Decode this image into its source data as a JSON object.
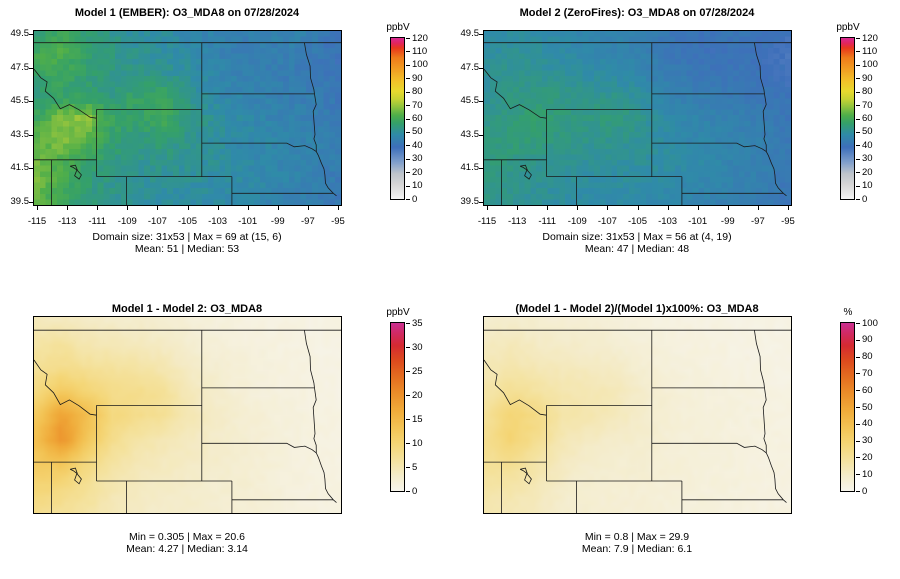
{
  "figure_background": "#ffffff",
  "text_color": "#000000",
  "axes": {
    "x_ticks": [
      "-115",
      "-113",
      "-111",
      "-109",
      "-107",
      "-105",
      "-103",
      "-101",
      "-99",
      "-97",
      "-95"
    ],
    "x_tick_values": [
      -115,
      -113,
      -111,
      -109,
      -107,
      -105,
      -103,
      -101,
      -99,
      -97,
      -95
    ],
    "y_ticks": [
      "39.5",
      "41.5",
      "43.5",
      "45.5",
      "47.5",
      "49.5"
    ],
    "y_tick_values": [
      39.5,
      41.5,
      43.5,
      45.5,
      47.5,
      49.5
    ]
  },
  "palettes": {
    "spectral": [
      [
        0.0,
        "#f4f4f4"
      ],
      [
        0.085,
        "#d7d7d7"
      ],
      [
        0.155,
        "#bfc5cb"
      ],
      [
        0.23,
        "#7e9ecb"
      ],
      [
        0.32,
        "#3e6fba"
      ],
      [
        0.4,
        "#2f8ba8"
      ],
      [
        0.47,
        "#34a06a"
      ],
      [
        0.52,
        "#4fae4a"
      ],
      [
        0.57,
        "#8cc23f"
      ],
      [
        0.62,
        "#c6d334"
      ],
      [
        0.67,
        "#e8da2e"
      ],
      [
        0.73,
        "#f2c42a"
      ],
      [
        0.8,
        "#f1a224"
      ],
      [
        0.88,
        "#ee7b1b"
      ],
      [
        0.94,
        "#e8381d"
      ],
      [
        0.97,
        "#e22560"
      ],
      [
        1.0,
        "#da2b90"
      ]
    ],
    "heat": [
      [
        0.0,
        "#f7f5ec"
      ],
      [
        0.09,
        "#f4ecca"
      ],
      [
        0.18,
        "#f4e3a0"
      ],
      [
        0.28,
        "#f4d676"
      ],
      [
        0.38,
        "#f3c354"
      ],
      [
        0.48,
        "#f0ab3a"
      ],
      [
        0.58,
        "#eb8e2a"
      ],
      [
        0.68,
        "#e46d20"
      ],
      [
        0.78,
        "#dc4a1e"
      ],
      [
        0.87,
        "#d42a33"
      ],
      [
        0.94,
        "#d02a64"
      ],
      [
        1.0,
        "#cb3090"
      ]
    ]
  },
  "geo": {
    "lon_range": [
      -115.2,
      -94.8
    ],
    "lat_range": [
      39.3,
      49.7
    ],
    "borders": [
      [
        [
          -115.2,
          49
        ],
        [
          -94.8,
          49
        ]
      ],
      [
        [
          -97.23,
          49
        ],
        [
          -97.1,
          48.3
        ],
        [
          -96.85,
          47.6
        ],
        [
          -96.83,
          46.9
        ],
        [
          -96.6,
          46.2
        ],
        [
          -96.56,
          45.93
        ],
        [
          -96.45,
          45.3
        ],
        [
          -96.65,
          44.9
        ],
        [
          -96.53,
          43.5
        ],
        [
          -96.6,
          43.25
        ],
        [
          -96.45,
          42.9
        ],
        [
          -96.44,
          42.49
        ],
        [
          -96.3,
          42.25
        ],
        [
          -96.1,
          41.8
        ],
        [
          -95.93,
          41.45
        ],
        [
          -95.87,
          41.1
        ],
        [
          -95.83,
          40.6
        ],
        [
          -95.65,
          40.32
        ],
        [
          -95.31,
          40.0
        ],
        [
          -95.1,
          39.85
        ]
      ],
      [
        [
          -115.2,
          47.42
        ],
        [
          -114.75,
          46.9
        ],
        [
          -114.33,
          46.66
        ],
        [
          -114.45,
          46.1
        ],
        [
          -113.9,
          45.68
        ],
        [
          -113.45,
          45.05
        ],
        [
          -112.85,
          45.3
        ],
        [
          -112.2,
          44.99
        ],
        [
          -111.47,
          44.54
        ],
        [
          -111.05,
          44.49
        ]
      ],
      [
        [
          -111.05,
          44.49
        ],
        [
          -111.05,
          45.0
        ],
        [
          -104.05,
          45.0
        ]
      ],
      [
        [
          -111.05,
          44.49
        ],
        [
          -111.05,
          41.0
        ]
      ],
      [
        [
          -115.2,
          42.0
        ],
        [
          -111.05,
          42.0
        ]
      ],
      [
        [
          -114.04,
          42.0
        ],
        [
          -114.04,
          39.3
        ]
      ],
      [
        [
          -111.05,
          41.0
        ],
        [
          -102.05,
          41.0
        ]
      ],
      [
        [
          -109.05,
          41.0
        ],
        [
          -109.05,
          39.3
        ]
      ],
      [
        [
          -104.05,
          49.0
        ],
        [
          -104.05,
          41.0
        ]
      ],
      [
        [
          -104.05,
          45.94
        ],
        [
          -96.56,
          45.94
        ]
      ],
      [
        [
          -104.05,
          43.0
        ],
        [
          -98.4,
          43.0
        ],
        [
          -97.9,
          42.78
        ],
        [
          -97.2,
          42.85
        ],
        [
          -96.72,
          42.66
        ],
        [
          -96.44,
          42.49
        ]
      ],
      [
        [
          -102.05,
          41.0
        ],
        [
          -102.05,
          39.3
        ]
      ],
      [
        [
          -102.05,
          40.0
        ],
        [
          -95.31,
          40.0
        ]
      ],
      [
        [
          -112.8,
          41.62
        ],
        [
          -112.45,
          41.68
        ],
        [
          -112.3,
          41.35
        ],
        [
          -112.05,
          41.1
        ],
        [
          -112.2,
          40.85
        ],
        [
          -112.5,
          41.05
        ],
        [
          -112.35,
          41.4
        ],
        [
          -112.6,
          41.55
        ],
        [
          -112.8,
          41.62
        ]
      ]
    ]
  },
  "chart_data": [
    {
      "type": "heatmap",
      "panel": "top-left",
      "title": "Model 1 (EMBER): O3_MDA8 on 07/28/2024",
      "variable": "O3_MDA8",
      "date": "07/28/2024",
      "colorbar_title": "ppbV",
      "colorbar_ticks": [
        0,
        10,
        20,
        30,
        40,
        50,
        60,
        70,
        80,
        90,
        100,
        110,
        120
      ],
      "scale_range": [
        0,
        120
      ],
      "xlim": [
        -115,
        -95
      ],
      "ylim": [
        39.5,
        49.5
      ],
      "caption1": "Domain size: 31x53 | Max = 69 at (15, 6)",
      "caption2": "Mean: 51 | Median: 53",
      "stats": {
        "domain_size": "31x53",
        "max": 69,
        "max_at": "(15, 6)",
        "mean": 51,
        "median": 53
      },
      "show_axes": true,
      "palette": "spectral",
      "noise_amp": 2.2,
      "grid_lat": [
        49.5,
        48.25,
        47.0,
        45.75,
        44.5,
        43.25,
        42.0,
        40.75,
        39.5
      ],
      "grid_lon": [
        -115,
        -113.33,
        -111.67,
        -110,
        -108.33,
        -106.67,
        -105,
        -103.33,
        -101.67,
        -100,
        -98.33,
        -96.67,
        -95
      ],
      "grid": [
        [
          56,
          59,
          55,
          52,
          50,
          49,
          47,
          45,
          44,
          44,
          46,
          43,
          41
        ],
        [
          60,
          62,
          56,
          53,
          51,
          50,
          48,
          45,
          44,
          43,
          44,
          42,
          40
        ],
        [
          57,
          58,
          55,
          53,
          52,
          52,
          50,
          47,
          45,
          44,
          43,
          42,
          40
        ],
        [
          53,
          57,
          56,
          54,
          57,
          59,
          52,
          48,
          46,
          45,
          44,
          43,
          41
        ],
        [
          59,
          67,
          69,
          58,
          56,
          60,
          54,
          50,
          48,
          46,
          45,
          44,
          42
        ],
        [
          63,
          68,
          63,
          56,
          54,
          55,
          52,
          50,
          48,
          47,
          46,
          45,
          43
        ],
        [
          65,
          62,
          57,
          54,
          52,
          52,
          51,
          50,
          48,
          47,
          46,
          45,
          43
        ],
        [
          67,
          60,
          55,
          52,
          51,
          50,
          50,
          49,
          48,
          47,
          46,
          45,
          42
        ],
        [
          64,
          58,
          54,
          52,
          50,
          49,
          49,
          48,
          47,
          46,
          45,
          44,
          41
        ]
      ]
    },
    {
      "type": "heatmap",
      "panel": "top-right",
      "title": "Model 2 (ZeroFires): O3_MDA8 on 07/28/2024",
      "variable": "O3_MDA8",
      "date": "07/28/2024",
      "colorbar_title": "ppbV",
      "colorbar_ticks": [
        0,
        10,
        20,
        30,
        40,
        50,
        60,
        70,
        80,
        90,
        100,
        110,
        120
      ],
      "scale_range": [
        0,
        120
      ],
      "xlim": [
        -115,
        -95
      ],
      "ylim": [
        39.5,
        49.5
      ],
      "caption1": "Domain size: 31x53 | Max = 56 at (4, 19)",
      "caption2": "Mean: 47 | Median: 48",
      "stats": {
        "domain_size": "31x53",
        "max": 56,
        "max_at": "(4, 19)",
        "mean": 47,
        "median": 48
      },
      "show_axes": true,
      "palette": "spectral",
      "noise_amp": 1.6,
      "grid_lat": [
        49.5,
        48.25,
        47.0,
        45.75,
        44.5,
        43.25,
        42.0,
        40.75,
        39.5
      ],
      "grid_lon": [
        -115,
        -113.33,
        -111.67,
        -110,
        -108.33,
        -106.67,
        -105,
        -103.33,
        -101.67,
        -100,
        -98.33,
        -96.67,
        -95
      ],
      "grid": [
        [
          47,
          49,
          48,
          47,
          46,
          45,
          44,
          42,
          40,
          40,
          41,
          40,
          38
        ],
        [
          49,
          51,
          50,
          48,
          47,
          46,
          45,
          42,
          40,
          39,
          40,
          39,
          37
        ],
        [
          50,
          52,
          51,
          50,
          49,
          48,
          47,
          44,
          42,
          41,
          41,
          40,
          38
        ],
        [
          50,
          53,
          54,
          53,
          52,
          52,
          50,
          46,
          44,
          43,
          42,
          41,
          40
        ],
        [
          52,
          54,
          56,
          54,
          53,
          54,
          52,
          48,
          46,
          45,
          44,
          43,
          41
        ],
        [
          53,
          55,
          54,
          53,
          52,
          52,
          51,
          49,
          47,
          46,
          45,
          44,
          42
        ],
        [
          54,
          53,
          52,
          51,
          50,
          50,
          50,
          49,
          48,
          47,
          45,
          44,
          42
        ],
        [
          53,
          52,
          51,
          50,
          49,
          49,
          49,
          48,
          47,
          46,
          45,
          44,
          41
        ],
        [
          52,
          51,
          50,
          49,
          48,
          48,
          48,
          47,
          46,
          45,
          44,
          43,
          40
        ]
      ]
    },
    {
      "type": "heatmap",
      "panel": "bottom-left",
      "title": "Model 1 - Model 2: O3_MDA8",
      "variable": "O3_MDA8",
      "colorbar_title": "ppbV",
      "colorbar_ticks": [
        0,
        5,
        10,
        15,
        20,
        25,
        30,
        35
      ],
      "scale_range": [
        0,
        35
      ],
      "xlim": [
        -115,
        -95
      ],
      "ylim": [
        39.5,
        49.5
      ],
      "caption1": "Min = 0.305 | Max = 20.6",
      "caption2": "Mean: 4.27 | Median: 3.14",
      "stats": {
        "min": 0.305,
        "max": 20.6,
        "mean": 4.27,
        "median": 3.14
      },
      "show_axes": false,
      "palette": "heat",
      "noise_amp": 0.35,
      "grid_lat": [
        49.5,
        48.25,
        47.0,
        45.75,
        44.5,
        43.25,
        42.0,
        40.75,
        39.5
      ],
      "grid_lon": [
        -115,
        -113.33,
        -111.67,
        -110,
        -108.33,
        -106.67,
        -105,
        -103.33,
        -101.67,
        -100,
        -98.33,
        -96.67,
        -95
      ],
      "grid": [
        [
          4.0,
          4.0,
          3.5,
          3.0,
          2.8,
          2.5,
          2.0,
          1.5,
          1.2,
          1.0,
          1.0,
          0.8,
          0.8
        ],
        [
          6.0,
          6.5,
          5.0,
          4.5,
          4.0,
          3.5,
          2.5,
          2.0,
          1.5,
          1.2,
          1.0,
          0.8,
          0.8
        ],
        [
          7.0,
          8.0,
          7.0,
          6.5,
          6.0,
          5.0,
          3.5,
          2.5,
          2.0,
          1.5,
          1.2,
          1.0,
          0.8
        ],
        [
          9.0,
          12.0,
          10.0,
          8.0,
          8.0,
          7.0,
          4.5,
          3.0,
          2.0,
          1.5,
          1.2,
          1.0,
          0.8
        ],
        [
          12.0,
          18.0,
          14.0,
          9.0,
          8.0,
          7.0,
          5.0,
          3.5,
          2.5,
          2.0,
          1.5,
          1.2,
          1.0
        ],
        [
          14.0,
          20.0,
          13.0,
          8.0,
          6.0,
          5.0,
          4.0,
          3.0,
          2.5,
          2.0,
          1.5,
          1.2,
          1.0
        ],
        [
          12.0,
          13.0,
          9.0,
          6.0,
          4.5,
          4.0,
          3.5,
          3.0,
          2.5,
          2.0,
          1.5,
          1.2,
          1.0
        ],
        [
          10.0,
          9.0,
          7.0,
          5.0,
          4.0,
          3.5,
          3.0,
          2.5,
          2.5,
          2.0,
          1.5,
          1.2,
          1.0
        ],
        [
          8.0,
          7.0,
          6.0,
          4.5,
          3.5,
          3.0,
          3.0,
          2.5,
          2.0,
          2.0,
          1.5,
          1.2,
          1.0
        ]
      ]
    },
    {
      "type": "heatmap",
      "panel": "bottom-right",
      "title": "(Model 1 - Model 2)/(Model 1)x100%: O3_MDA8",
      "variable": "O3_MDA8",
      "colorbar_title": "%",
      "colorbar_ticks": [
        0,
        10,
        20,
        30,
        40,
        50,
        60,
        70,
        80,
        90,
        100
      ],
      "scale_range": [
        0,
        100
      ],
      "xlim": [
        -115,
        -95
      ],
      "ylim": [
        39.5,
        49.5
      ],
      "caption1": "Min = 0.8 | Max = 29.9",
      "caption2": "Mean: 7.9 | Median: 6.1",
      "stats": {
        "min": 0.8,
        "max": 29.9,
        "mean": 7.9,
        "median": 6.1
      },
      "show_axes": false,
      "palette": "heat",
      "noise_amp": 1.0,
      "grid_lat": [
        49.5,
        48.25,
        47.0,
        45.75,
        44.5,
        43.25,
        42.0,
        40.75,
        39.5
      ],
      "grid_lon": [
        -115,
        -113.33,
        -111.67,
        -110,
        -108.33,
        -106.67,
        -105,
        -103.33,
        -101.67,
        -100,
        -98.33,
        -96.67,
        -95
      ],
      "grid": [
        [
          8,
          8,
          7,
          6,
          6,
          5,
          4,
          3,
          3,
          2.5,
          2.5,
          2,
          2
        ],
        [
          11,
          12,
          10,
          9,
          8,
          7,
          5,
          4,
          3.5,
          3,
          2.5,
          2,
          2
        ],
        [
          13,
          15,
          13,
          12,
          11,
          10,
          7,
          5,
          4,
          3.5,
          3,
          2.5,
          2
        ],
        [
          16,
          21,
          18,
          15,
          14,
          13,
          9,
          6,
          4.5,
          4,
          3.5,
          3,
          2.5
        ],
        [
          20,
          28,
          24,
          16,
          15,
          13,
          9,
          7,
          5,
          4.5,
          4,
          3.5,
          3
        ],
        [
          22,
          29,
          22,
          14,
          11,
          9,
          8,
          6,
          5,
          4.5,
          4,
          3.5,
          3
        ],
        [
          20,
          22,
          16,
          11,
          8,
          7,
          7,
          6,
          5,
          4.5,
          4,
          3.5,
          3
        ],
        [
          17,
          16,
          13,
          9,
          7,
          6.5,
          6,
          5,
          5,
          4.5,
          4,
          3.5,
          3
        ],
        [
          14,
          13,
          11,
          8,
          7,
          6,
          6,
          5,
          4.5,
          4,
          3.5,
          3,
          3
        ]
      ]
    }
  ]
}
